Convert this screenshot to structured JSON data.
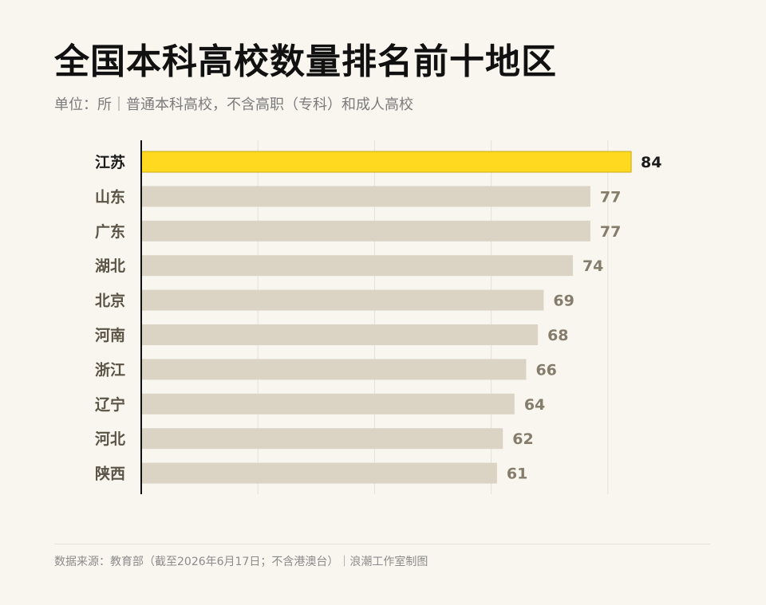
{
  "header": {
    "title": "全国本科高校数量排名前十地区",
    "subtitle": "单位：所｜普通本科高校，不含高职（专科）和成人高校"
  },
  "footer": {
    "source": "数据来源：教育部（截至2026年6月17日；不含港澳台）｜浪潮工作室制图"
  },
  "colors": {
    "highlight_bar": "#ffd91f",
    "highlight_bar_edge": "#c9aa12",
    "bar": "#dbd4c5",
    "highlight_text": "#1b1b1b",
    "text": "#5b5446",
    "value_text": "#857c6b",
    "grid": "#e6e1d5",
    "axis": "#111111",
    "background": "#f8f6ef"
  },
  "chart_data": {
    "type": "bar",
    "orientation": "horizontal",
    "categories": [
      "江苏",
      "山东",
      "广东",
      "湖北",
      "北京",
      "河南",
      "浙江",
      "辽宁",
      "河北",
      "陕西"
    ],
    "values": [
      84,
      77,
      77,
      74,
      69,
      68,
      66,
      64,
      62,
      61
    ],
    "highlight_index": 0,
    "xlim": [
      0,
      80
    ],
    "grid_x": [
      20,
      40,
      60,
      80
    ],
    "grid": true,
    "value_labels": true
  }
}
